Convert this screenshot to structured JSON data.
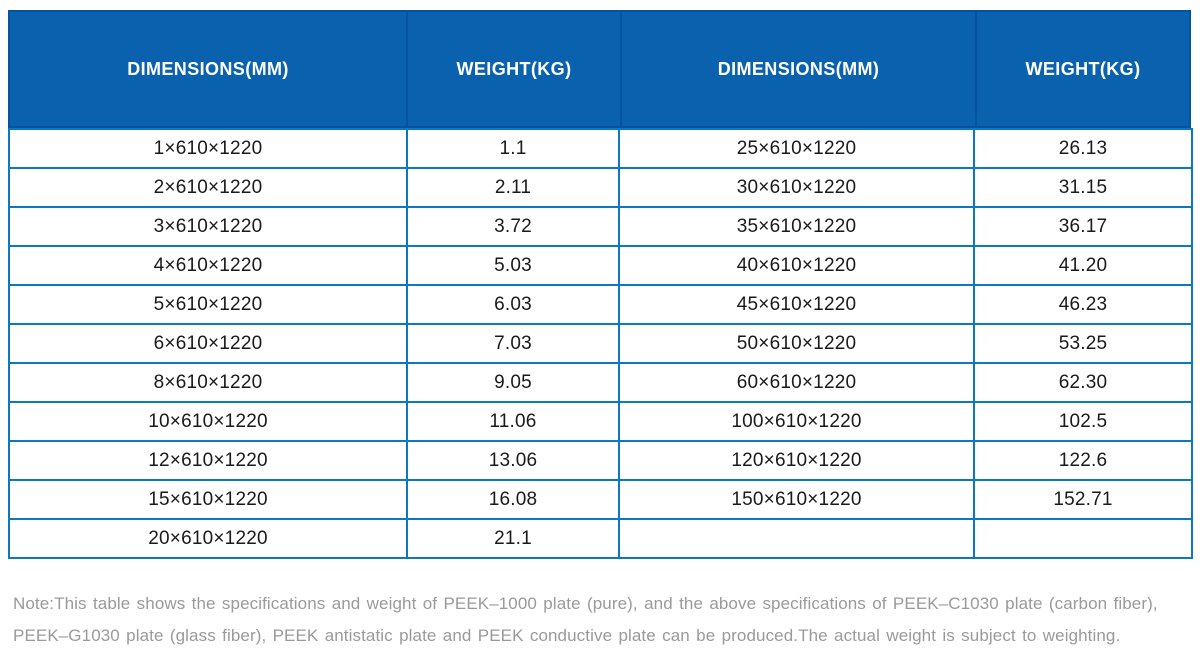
{
  "table": {
    "columns": [
      {
        "label": "DIMENSIONS(MM)"
      },
      {
        "label": "WEIGHT(KG)"
      },
      {
        "label": "DIMENSIONS(MM)"
      },
      {
        "label": "WEIGHT(KG)"
      }
    ],
    "rows": [
      [
        "1×610×1220",
        "1.1",
        "25×610×1220",
        "26.13"
      ],
      [
        "2×610×1220",
        "2.11",
        "30×610×1220",
        "31.15"
      ],
      [
        "3×610×1220",
        "3.72",
        "35×610×1220",
        "36.17"
      ],
      [
        "4×610×1220",
        "5.03",
        "40×610×1220",
        "41.20"
      ],
      [
        "5×610×1220",
        "6.03",
        "45×610×1220",
        "46.23"
      ],
      [
        "6×610×1220",
        "7.03",
        "50×610×1220",
        "53.25"
      ],
      [
        "8×610×1220",
        "9.05",
        "60×610×1220",
        "62.30"
      ],
      [
        "10×610×1220",
        "11.06",
        "100×610×1220",
        "102.5"
      ],
      [
        "12×610×1220",
        "13.06",
        "120×610×1220",
        "122.6"
      ],
      [
        "15×610×1220",
        "16.08",
        "150×610×1220",
        "152.71"
      ],
      [
        "20×610×1220",
        "21.1",
        "",
        ""
      ]
    ]
  },
  "note": {
    "line1": "Note:This table shows the specifications and weight of PEEK–1000 plate (pure), and the above specifications of PEEK–C1030 plate (carbon fiber),",
    "line2": "PEEK–G1030 plate (glass fiber), PEEK antistatic plate and PEEK conductive plate can be produced.The actual weight is subject to weighting."
  },
  "colors": {
    "header_bg": "#0a61ae",
    "header_divider": "#04539f",
    "grid_border": "#0d78c2",
    "cell_text": "#1a1a1a",
    "note_text": "#9a9a9a",
    "header_text": "#ffffff"
  }
}
